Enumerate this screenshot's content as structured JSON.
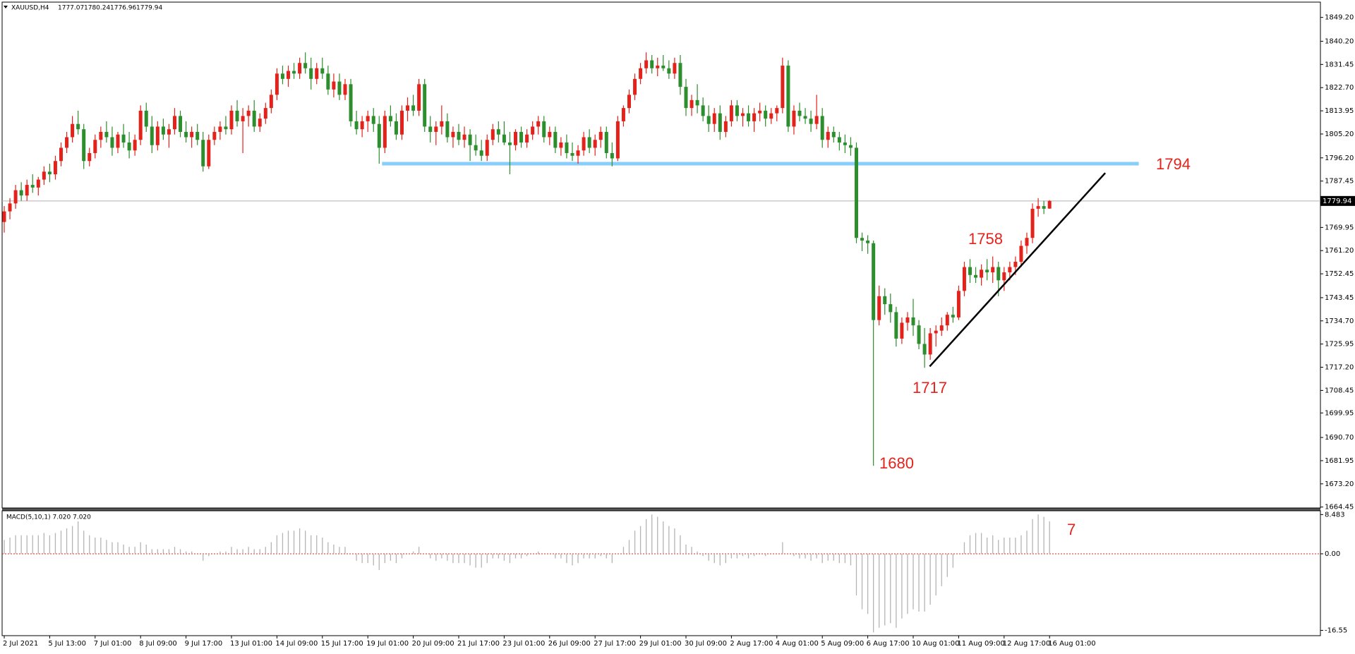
{
  "chart_data": {
    "type": "candlestick",
    "symbol": "XAUUSD,H4",
    "categories": [
      "2 Jul 2021",
      null,
      null,
      null,
      null,
      null,
      null,
      null,
      "5 Jul 13:00",
      null,
      null,
      null,
      null,
      null,
      null,
      null,
      "7 Jul 01:00",
      null,
      null,
      null,
      null,
      null,
      null,
      null,
      "8 Jul 09:00",
      null,
      null,
      null,
      null,
      null,
      null,
      null,
      "9 Jul 17:00",
      null,
      null,
      null,
      null,
      null,
      null,
      null,
      "13 Jul 01:00",
      null,
      null,
      null,
      null,
      null,
      null,
      null,
      "14 Jul 09:00",
      null,
      null,
      null,
      null,
      null,
      null,
      null,
      "15 Jul 17:00",
      null,
      null,
      null,
      null,
      null,
      null,
      null,
      "19 Jul 01:00",
      null,
      null,
      null,
      null,
      null,
      null,
      null,
      "20 Jul 09:00",
      null,
      null,
      null,
      null,
      null,
      null,
      null,
      "21 Jul 17:00",
      null,
      null,
      null,
      null,
      null,
      null,
      null,
      "23 Jul 01:00",
      null,
      null,
      null,
      null,
      null,
      null,
      null,
      "26 Jul 09:00",
      null,
      null,
      null,
      null,
      null,
      null,
      null,
      "27 Jul 17:00",
      null,
      null,
      null,
      null,
      null,
      null,
      null,
      "29 Jul 01:00",
      null,
      null,
      null,
      null,
      null,
      null,
      null,
      "30 Jul 09:00",
      null,
      null,
      null,
      null,
      null,
      null,
      null,
      "2 Aug 17:00",
      null,
      null,
      null,
      null,
      null,
      null,
      null,
      "4 Aug 01:00",
      null,
      null,
      null,
      null,
      null,
      null,
      null,
      "5 Aug 09:00",
      null,
      null,
      null,
      null,
      null,
      null,
      null,
      "6 Aug 17:00",
      null,
      null,
      null,
      null,
      null,
      null,
      null,
      "10 Aug 01:00",
      null,
      null,
      null,
      null,
      null,
      null,
      null,
      "11 Aug 09:00",
      null,
      null,
      null,
      null,
      null,
      null,
      null,
      "12 Aug 17:00",
      null,
      null,
      null,
      null,
      null,
      null,
      null,
      "16 Aug 01:00"
    ],
    "candles": [
      [
        1772,
        1778,
        1768,
        1776
      ],
      [
        1776,
        1781,
        1773,
        1779
      ],
      [
        1779,
        1786,
        1777,
        1784
      ],
      [
        1784,
        1787,
        1780,
        1782
      ],
      [
        1782,
        1788,
        1780,
        1786
      ],
      [
        1786,
        1790,
        1783,
        1785
      ],
      [
        1785,
        1789,
        1782,
        1788
      ],
      [
        1788,
        1793,
        1786,
        1791
      ],
      [
        1791,
        1794,
        1787,
        1790
      ],
      [
        1790,
        1797,
        1788,
        1795
      ],
      [
        1795,
        1802,
        1793,
        1800
      ],
      [
        1800,
        1806,
        1798,
        1804
      ],
      [
        1804,
        1812,
        1802,
        1809
      ],
      [
        1809,
        1814,
        1805,
        1807
      ],
      [
        1807,
        1809,
        1792,
        1795
      ],
      [
        1795,
        1800,
        1793,
        1798
      ],
      [
        1798,
        1805,
        1796,
        1803
      ],
      [
        1803,
        1808,
        1800,
        1806
      ],
      [
        1806,
        1810,
        1802,
        1804
      ],
      [
        1804,
        1808,
        1797,
        1800
      ],
      [
        1800,
        1806,
        1798,
        1805
      ],
      [
        1805,
        1809,
        1800,
        1802
      ],
      [
        1802,
        1806,
        1796,
        1799
      ],
      [
        1799,
        1805,
        1797,
        1803
      ],
      [
        1803,
        1816,
        1801,
        1814
      ],
      [
        1814,
        1817,
        1806,
        1808
      ],
      [
        1808,
        1812,
        1798,
        1801
      ],
      [
        1801,
        1810,
        1799,
        1808
      ],
      [
        1808,
        1811,
        1803,
        1805
      ],
      [
        1805,
        1809,
        1800,
        1807
      ],
      [
        1807,
        1815,
        1805,
        1812
      ],
      [
        1812,
        1814,
        1804,
        1806
      ],
      [
        1806,
        1810,
        1802,
        1804
      ],
      [
        1804,
        1808,
        1800,
        1806
      ],
      [
        1806,
        1809,
        1801,
        1803
      ],
      [
        1803,
        1806,
        1791,
        1793
      ],
      [
        1793,
        1805,
        1792,
        1803
      ],
      [
        1803,
        1808,
        1801,
        1806
      ],
      [
        1806,
        1810,
        1803,
        1808
      ],
      [
        1808,
        1812,
        1805,
        1807
      ],
      [
        1807,
        1816,
        1805,
        1814
      ],
      [
        1814,
        1818,
        1808,
        1810
      ],
      [
        1810,
        1815,
        1798,
        1812
      ],
      [
        1812,
        1816,
        1808,
        1814
      ],
      [
        1814,
        1818,
        1806,
        1808
      ],
      [
        1808,
        1813,
        1806,
        1811
      ],
      [
        1811,
        1817,
        1809,
        1815
      ],
      [
        1815,
        1822,
        1813,
        1820
      ],
      [
        1820,
        1830,
        1818,
        1828
      ],
      [
        1828,
        1831,
        1824,
        1826
      ],
      [
        1826,
        1831,
        1823,
        1829
      ],
      [
        1829,
        1832,
        1826,
        1828
      ],
      [
        1828,
        1834,
        1826,
        1832
      ],
      [
        1832,
        1836,
        1828,
        1830
      ],
      [
        1830,
        1834,
        1822,
        1826
      ],
      [
        1826,
        1832,
        1824,
        1830
      ],
      [
        1830,
        1834,
        1826,
        1828
      ],
      [
        1828,
        1831,
        1820,
        1822
      ],
      [
        1822,
        1828,
        1819,
        1825
      ],
      [
        1825,
        1828,
        1818,
        1820
      ],
      [
        1820,
        1826,
        1818,
        1824
      ],
      [
        1824,
        1826,
        1808,
        1810
      ],
      [
        1810,
        1814,
        1805,
        1807
      ],
      [
        1807,
        1812,
        1804,
        1810
      ],
      [
        1810,
        1814,
        1806,
        1812
      ],
      [
        1812,
        1815,
        1806,
        1809
      ],
      [
        1809,
        1812,
        1794,
        1800
      ],
      [
        1800,
        1814,
        1798,
        1812
      ],
      [
        1812,
        1816,
        1808,
        1810
      ],
      [
        1810,
        1813,
        1803,
        1805
      ],
      [
        1805,
        1816,
        1803,
        1814
      ],
      [
        1814,
        1819,
        1810,
        1816
      ],
      [
        1816,
        1820,
        1812,
        1814
      ],
      [
        1814,
        1826,
        1812,
        1824
      ],
      [
        1824,
        1826,
        1806,
        1808
      ],
      [
        1808,
        1812,
        1802,
        1806
      ],
      [
        1806,
        1810,
        1801,
        1808
      ],
      [
        1808,
        1816,
        1805,
        1810
      ],
      [
        1810,
        1813,
        1802,
        1804
      ],
      [
        1804,
        1808,
        1800,
        1806
      ],
      [
        1806,
        1809,
        1801,
        1803
      ],
      [
        1803,
        1808,
        1800,
        1805
      ],
      [
        1805,
        1807,
        1795,
        1801
      ],
      [
        1801,
        1805,
        1797,
        1799
      ],
      [
        1799,
        1803,
        1795,
        1797
      ],
      [
        1797,
        1805,
        1795,
        1803
      ],
      [
        1803,
        1809,
        1801,
        1807
      ],
      [
        1807,
        1810,
        1802,
        1805
      ],
      [
        1805,
        1810,
        1801,
        1802
      ],
      [
        1802,
        1806,
        1790,
        1801
      ],
      [
        1801,
        1807,
        1799,
        1806
      ],
      [
        1806,
        1808,
        1800,
        1802
      ],
      [
        1802,
        1807,
        1800,
        1805
      ],
      [
        1805,
        1810,
        1803,
        1808
      ],
      [
        1808,
        1812,
        1805,
        1810
      ],
      [
        1810,
        1812,
        1802,
        1804
      ],
      [
        1804,
        1808,
        1801,
        1806
      ],
      [
        1806,
        1808,
        1798,
        1800
      ],
      [
        1800,
        1804,
        1797,
        1802
      ],
      [
        1802,
        1805,
        1796,
        1798
      ],
      [
        1798,
        1802,
        1795,
        1797
      ],
      [
        1797,
        1801,
        1794,
        1799
      ],
      [
        1799,
        1806,
        1797,
        1804
      ],
      [
        1804,
        1807,
        1798,
        1800
      ],
      [
        1800,
        1805,
        1797,
        1803
      ],
      [
        1803,
        1808,
        1800,
        1806
      ],
      [
        1806,
        1808,
        1796,
        1798
      ],
      [
        1798,
        1802,
        1793,
        1796
      ],
      [
        1796,
        1812,
        1795,
        1810
      ],
      [
        1810,
        1816,
        1808,
        1815
      ],
      [
        1815,
        1822,
        1813,
        1820
      ],
      [
        1820,
        1828,
        1818,
        1826
      ],
      [
        1826,
        1832,
        1824,
        1830
      ],
      [
        1830,
        1836,
        1828,
        1833
      ],
      [
        1833,
        1835,
        1828,
        1830
      ],
      [
        1830,
        1834,
        1827,
        1831
      ],
      [
        1831,
        1835,
        1829,
        1830
      ],
      [
        1830,
        1833,
        1826,
        1828
      ],
      [
        1828,
        1834,
        1826,
        1832
      ],
      [
        1832,
        1835,
        1820,
        1823
      ],
      [
        1823,
        1826,
        1812,
        1815
      ],
      [
        1815,
        1820,
        1812,
        1818
      ],
      [
        1818,
        1824,
        1813,
        1816
      ],
      [
        1816,
        1819,
        1810,
        1812
      ],
      [
        1812,
        1816,
        1806,
        1809
      ],
      [
        1809,
        1815,
        1806,
        1813
      ],
      [
        1813,
        1816,
        1803,
        1806
      ],
      [
        1806,
        1812,
        1804,
        1810
      ],
      [
        1810,
        1818,
        1808,
        1816
      ],
      [
        1816,
        1818,
        1810,
        1812
      ],
      [
        1812,
        1815,
        1808,
        1813
      ],
      [
        1813,
        1816,
        1808,
        1810
      ],
      [
        1810,
        1815,
        1806,
        1813
      ],
      [
        1813,
        1817,
        1810,
        1814
      ],
      [
        1814,
        1816,
        1808,
        1811
      ],
      [
        1811,
        1815,
        1809,
        1813
      ],
      [
        1813,
        1816,
        1810,
        1815
      ],
      [
        1815,
        1834,
        1813,
        1831
      ],
      [
        1831,
        1833,
        1806,
        1808
      ],
      [
        1808,
        1816,
        1805,
        1814
      ],
      [
        1814,
        1817,
        1810,
        1812
      ],
      [
        1812,
        1815,
        1809,
        1811
      ],
      [
        1811,
        1814,
        1806,
        1809
      ],
      [
        1809,
        1820,
        1807,
        1812
      ],
      [
        1812,
        1815,
        1800,
        1803
      ],
      [
        1803,
        1808,
        1800,
        1806
      ],
      [
        1806,
        1808,
        1802,
        1804
      ],
      [
        1804,
        1806,
        1799,
        1802
      ],
      [
        1802,
        1805,
        1798,
        1801
      ],
      [
        1801,
        1804,
        1797,
        1800
      ],
      [
        1800,
        1802,
        1764,
        1766
      ],
      [
        1766,
        1768,
        1761,
        1765
      ],
      [
        1765,
        1767,
        1760,
        1764
      ],
      [
        1764,
        1765,
        1680,
        1735
      ],
      [
        1735,
        1748,
        1733,
        1744
      ],
      [
        1744,
        1747,
        1737,
        1741
      ],
      [
        1741,
        1745,
        1734,
        1738
      ],
      [
        1738,
        1740,
        1725,
        1728
      ],
      [
        1728,
        1736,
        1726,
        1734
      ],
      [
        1734,
        1738,
        1731,
        1736
      ],
      [
        1736,
        1743,
        1729,
        1733
      ],
      [
        1733,
        1735,
        1724,
        1726
      ],
      [
        1726,
        1732,
        1717,
        1722
      ],
      [
        1722,
        1732,
        1720,
        1730
      ],
      [
        1730,
        1733,
        1725,
        1731
      ],
      [
        1731,
        1736,
        1729,
        1733
      ],
      [
        1733,
        1738,
        1731,
        1737
      ],
      [
        1737,
        1740,
        1734,
        1736
      ],
      [
        1736,
        1748,
        1735,
        1746
      ],
      [
        1746,
        1757,
        1744,
        1755
      ],
      [
        1755,
        1758,
        1749,
        1752
      ],
      [
        1752,
        1755,
        1749,
        1751
      ],
      [
        1751,
        1756,
        1748,
        1754
      ],
      [
        1754,
        1758,
        1750,
        1753
      ],
      [
        1753,
        1759,
        1749,
        1755
      ],
      [
        1755,
        1757,
        1744,
        1750
      ],
      [
        1750,
        1755,
        1746,
        1753
      ],
      [
        1753,
        1757,
        1750,
        1755
      ],
      [
        1755,
        1759,
        1752,
        1757
      ],
      [
        1757,
        1765,
        1755,
        1763
      ],
      [
        1763,
        1768,
        1760,
        1766
      ],
      [
        1766,
        1779,
        1764,
        1777
      ],
      [
        1777,
        1781,
        1774,
        1778
      ],
      [
        1778,
        1780,
        1775,
        1777
      ],
      [
        1777.07,
        1780.24,
        1776.96,
        1779.94
      ]
    ],
    "up_color": "#e3231b",
    "down_color": "#2d8e2d",
    "ylim": [
      1664.1,
      1854.7
    ],
    "yticks": [
      {
        "value": 1849.2,
        "label": "1849.20"
      },
      {
        "value": 1840.2,
        "label": "1840.20"
      },
      1831.45,
      {
        "value": 1822.7,
        "label": "1822.70"
      },
      1813.95,
      {
        "value": 1805.2,
        "label": "1805.20"
      },
      {
        "value": 1796.2,
        "label": "1796.20"
      },
      1787.45,
      {
        "value": 1769.95,
        "label": "1769.95"
      },
      {
        "value": 1761.2,
        "label": "1761.20"
      },
      1752.45,
      1743.45,
      {
        "value": 1734.7,
        "label": "1734.70"
      },
      1725.95,
      {
        "value": 1717.2,
        "label": "1717.20"
      },
      1708.45,
      1699.95,
      {
        "value": 1690.7,
        "label": "1690.70"
      },
      1681.95,
      {
        "value": 1673.2,
        "label": "1673.20"
      },
      1664.45
    ],
    "level": {
      "value": 1794,
      "label": "1794",
      "color": "#87cefa"
    },
    "trendline": {
      "values": [
        1717.5,
        1790.5
      ],
      "color": "#000000"
    },
    "annotations": [
      "1758",
      "1717",
      "1680"
    ],
    "macd": {
      "type": "bar",
      "title": "MACD(5,10,1) 7.020 7.020",
      "color": "#b4b4b4",
      "zero_color": "#e3231b",
      "values": [
        3,
        3.5,
        4,
        4,
        4,
        4,
        4,
        4.5,
        4,
        4.5,
        5,
        5.5,
        6,
        7,
        5,
        4,
        3.5,
        3.5,
        3,
        2.5,
        2.5,
        2,
        1.5,
        1.5,
        2.5,
        2,
        1,
        1,
        1,
        1,
        1.5,
        1,
        0.5,
        0.5,
        0,
        -1.5,
        -0.5,
        0,
        0.5,
        0.5,
        1.5,
        1,
        1,
        1.5,
        1,
        1,
        1.5,
        2.5,
        4,
        4.5,
        5,
        5,
        5.5,
        5,
        4,
        4,
        3.5,
        2.5,
        2,
        1.5,
        1.5,
        0,
        -1.5,
        -2,
        -2,
        -2.5,
        -3.5,
        -2,
        -1.5,
        -2,
        -1,
        0,
        0.5,
        1.5,
        0,
        -1,
        -1.5,
        -1,
        -1.5,
        -2,
        -2,
        -2,
        -2.5,
        -3,
        -3,
        -2,
        -1,
        -1,
        -1.5,
        -2,
        -1,
        -1,
        -0.5,
        0,
        0.5,
        0,
        0,
        -1,
        -1,
        -2,
        -2.5,
        -2,
        -1,
        -1,
        -1,
        -0.5,
        -1,
        -2,
        0,
        1.5,
        3,
        5,
        6,
        7.5,
        8.5,
        8,
        7,
        6,
        5.5,
        4,
        2,
        1.5,
        0.5,
        -0.5,
        -1.5,
        -2,
        -2.5,
        -2,
        -1,
        -1,
        -0.5,
        -1,
        -0.5,
        0,
        -0.5,
        0,
        0,
        2.5,
        0,
        -0.5,
        -1,
        -1,
        -1.5,
        -1,
        -2,
        -1.5,
        -1.5,
        -2,
        -2,
        -2.5,
        -9,
        -12,
        -13,
        -17,
        -16,
        -15.5,
        -15,
        -16,
        -14,
        -13,
        -12,
        -12.5,
        -12.5,
        -11,
        -9,
        -7,
        -5,
        -3,
        0,
        2.5,
        4,
        4.5,
        4.5,
        3.5,
        4,
        3,
        3.5,
        3.5,
        3.5,
        4,
        5,
        7.5,
        8.5,
        8,
        7.02
      ],
      "ylim": [
        -17.7,
        9.3
      ],
      "yticks": [
        8.483,
        {
          "value": 0,
          "label": "0.00"
        },
        -16.55
      ],
      "annotation": "7"
    }
  }
}
